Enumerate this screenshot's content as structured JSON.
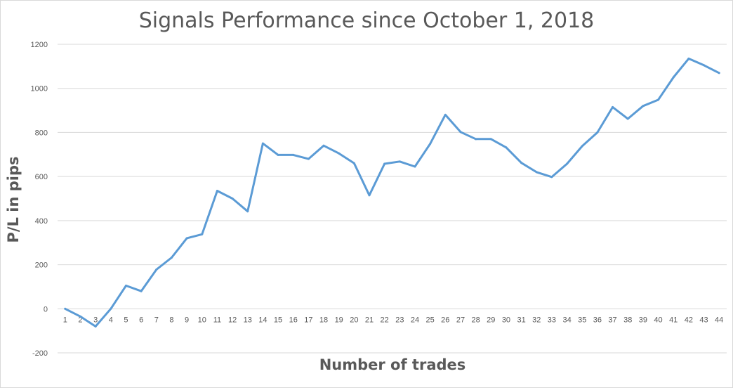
{
  "chart_data": {
    "type": "line",
    "title": "Signals Performance since October 1, 2018",
    "xlabel": "Number of trades",
    "ylabel": "P/L in pips",
    "ylim": [
      -200,
      1200
    ],
    "yticks": [
      -200,
      0,
      200,
      400,
      600,
      800,
      1000,
      1200
    ],
    "grid": true,
    "legend": "none",
    "line_color": "#5b9bd5",
    "categories": [
      "1",
      "2",
      "3",
      "4",
      "5",
      "6",
      "7",
      "8",
      "9",
      "10",
      "11",
      "12",
      "13",
      "14",
      "15",
      "16",
      "17",
      "18",
      "19",
      "20",
      "21",
      "22",
      "23",
      "24",
      "25",
      "26",
      "27",
      "28",
      "29",
      "30",
      "31",
      "32",
      "33",
      "34",
      "35",
      "36",
      "37",
      "38",
      "39",
      "40",
      "41",
      "42",
      "43",
      "44"
    ],
    "series": [
      {
        "values": [
          0,
          -35,
          -80,
          0,
          105,
          80,
          178,
          232,
          320,
          338,
          535,
          500,
          442,
          750,
          698,
          698,
          680,
          740,
          705,
          660,
          515,
          658,
          668,
          645,
          748,
          880,
          802,
          770,
          770,
          732,
          662,
          620,
          598,
          658,
          738,
          800,
          915,
          862,
          920,
          948,
          1050,
          1135,
          1105,
          1070
        ]
      }
    ]
  }
}
